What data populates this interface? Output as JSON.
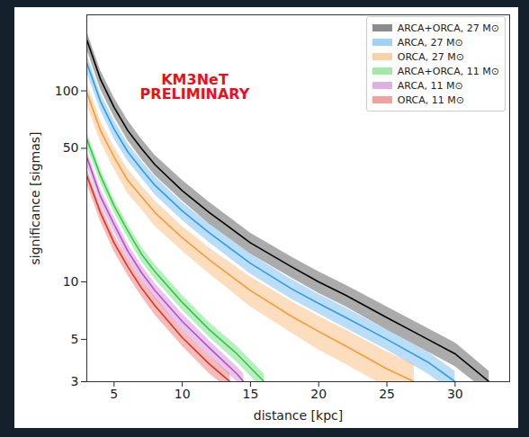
{
  "chart_data": {
    "type": "line",
    "annotation": "KM3NeT\nPRELIMINARY",
    "x_label": "distance [kpc]",
    "y_label": "significance [sigmas]",
    "xlim": [
      3,
      34
    ],
    "xticks": [
      5,
      10,
      15,
      20,
      25,
      30
    ],
    "ylim": [
      3,
      250
    ],
    "yticks": [
      3,
      5,
      10,
      50,
      100
    ],
    "log": "y",
    "grid": false,
    "legend": "top-right",
    "series": [
      {
        "name": "ARCA+ORCA, 27 M⊙",
        "color": "#000000",
        "x": [
          3,
          4,
          5,
          6,
          7,
          8,
          10,
          12,
          15,
          18,
          20,
          22,
          25,
          28,
          30,
          32.5
        ],
        "values": [
          185,
          115,
          82,
          62,
          50,
          41,
          30,
          23,
          16,
          12,
          10,
          8.5,
          6.5,
          5,
          4.2,
          3
        ],
        "lower": [
          165,
          102,
          73,
          55,
          44,
          36,
          26.5,
          20,
          14,
          10.5,
          8.7,
          7.4,
          5.6,
          4.3,
          3.6,
          2.6
        ],
        "upper": [
          205,
          128,
          92,
          70,
          56,
          46,
          34,
          26,
          18,
          13.5,
          11.3,
          9.6,
          7.4,
          5.7,
          4.8,
          3.4
        ]
      },
      {
        "name": "ARCA, 27 M⊙",
        "color": "#2e9be6",
        "x": [
          3,
          4,
          5,
          6,
          7,
          8,
          10,
          12,
          15,
          18,
          20,
          22,
          25,
          28,
          30
        ],
        "values": [
          140,
          88,
          63,
          48,
          39,
          32,
          23.5,
          18,
          12.5,
          9.2,
          7.7,
          6.5,
          5,
          3.8,
          3
        ],
        "lower": [
          125,
          79,
          56,
          43,
          35,
          28.5,
          21,
          16,
          11,
          8.1,
          6.8,
          5.7,
          4.4,
          3.3,
          2.6
        ],
        "upper": [
          155,
          97,
          70,
          53,
          43,
          35.5,
          26,
          20,
          14,
          10.3,
          8.6,
          7.3,
          5.6,
          4.3,
          3.4
        ]
      },
      {
        "name": "ORCA, 27 M⊙",
        "color": "#f59a3a",
        "x": [
          3,
          4,
          5,
          6,
          7,
          8,
          10,
          12,
          15,
          18,
          20,
          22,
          25,
          27
        ],
        "values": [
          98,
          62,
          45,
          34,
          28,
          23,
          17,
          13,
          9,
          6.6,
          5.5,
          4.6,
          3.5,
          3
        ],
        "lower": [
          85,
          54,
          39,
          29,
          24,
          19.5,
          14.5,
          11,
          7.4,
          5.4,
          4.4,
          3.7,
          2.8,
          2.4
        ],
        "upper": [
          110,
          70,
          51,
          39,
          32,
          26.5,
          19.5,
          15,
          10.6,
          7.9,
          6.6,
          5.6,
          4.3,
          3.7
        ]
      },
      {
        "name": "ARCA+ORCA, 11 M⊙",
        "color": "#2ecc40",
        "x": [
          3,
          4,
          5,
          6,
          7,
          8,
          10,
          12,
          14,
          16
        ],
        "values": [
          56,
          36,
          25,
          18.5,
          14,
          11.3,
          7.8,
          5.6,
          4.2,
          3
        ],
        "lower": [
          51,
          33,
          23,
          17,
          12.8,
          10.3,
          7.1,
          5.1,
          3.8,
          2.7
        ],
        "upper": [
          61,
          39,
          27,
          20,
          15.2,
          12.3,
          8.5,
          6.1,
          4.6,
          3.3
        ]
      },
      {
        "name": "ARCA, 11 M⊙",
        "color": "#b84fc4",
        "x": [
          3,
          4,
          5,
          6,
          7,
          8,
          10,
          12,
          14,
          14.5
        ],
        "values": [
          45,
          28,
          20,
          14.5,
          11.2,
          9,
          6.2,
          4.5,
          3.3,
          3
        ],
        "lower": [
          41,
          25.5,
          18.2,
          13.2,
          10.2,
          8.2,
          5.6,
          4.1,
          3.0,
          2.7
        ],
        "upper": [
          49,
          30.5,
          21.8,
          15.8,
          12.2,
          9.8,
          6.8,
          4.9,
          3.6,
          3.3
        ]
      },
      {
        "name": "ORCA, 11 M⊙",
        "color": "#e0302a",
        "x": [
          3,
          4,
          5,
          6,
          7,
          8,
          10,
          12,
          13.5
        ],
        "values": [
          36,
          23,
          16,
          12,
          9.3,
          7.5,
          5.1,
          3.7,
          3
        ],
        "lower": [
          32.5,
          20.8,
          14.4,
          10.8,
          8.4,
          6.7,
          4.6,
          3.3,
          2.7
        ],
        "upper": [
          39.5,
          25.2,
          17.6,
          13.2,
          10.2,
          8.3,
          5.6,
          4.1,
          3.3
        ]
      }
    ]
  }
}
